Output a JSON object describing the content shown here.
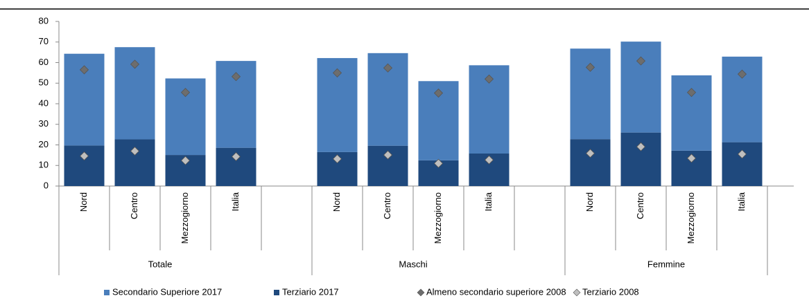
{
  "chart_data": {
    "type": "stacked-bar-with-markers",
    "groups": [
      {
        "name": "Totale",
        "categories": [
          "Nord",
          "Centro",
          "Mezzogiorno",
          "Italia"
        ]
      },
      {
        "name": "Maschi",
        "categories": [
          "Nord",
          "Centro",
          "Mezzogiorno",
          "Italia"
        ]
      },
      {
        "name": "Femmine",
        "categories": [
          "Nord",
          "Centro",
          "Mezzogiorno",
          "Italia"
        ]
      }
    ],
    "series": [
      {
        "name": "Secondario Superiore 2017",
        "kind": "bar",
        "color": "#4a7ebb",
        "values": [
          44.6,
          44.8,
          37.2,
          42.2,
          45.7,
          45.0,
          38.5,
          42.9,
          44.0,
          44.2,
          36.6,
          41.6
        ]
      },
      {
        "name": "Terziario 2017",
        "kind": "bar",
        "color": "#1f497d",
        "values": [
          19.7,
          22.7,
          15.1,
          18.6,
          16.5,
          19.6,
          12.5,
          15.8,
          22.8,
          26.0,
          17.2,
          21.3
        ]
      },
      {
        "name": "Almeno secondario superiore 2008",
        "kind": "marker",
        "color": "#6d6d6d",
        "values": [
          56.5,
          59.2,
          45.5,
          53.2,
          55.0,
          57.4,
          45.2,
          52.0,
          57.7,
          60.8,
          45.5,
          54.4
        ]
      },
      {
        "name": "Terziario 2008",
        "kind": "marker",
        "color": "#bfbfbf",
        "values": [
          14.6,
          17.0,
          12.4,
          14.3,
          13.2,
          15.1,
          11.0,
          12.7,
          15.9,
          19.1,
          13.5,
          15.5
        ]
      }
    ],
    "stack_order": [
      1,
      0
    ],
    "ylim": [
      0,
      80
    ],
    "yticks": [
      0,
      10,
      20,
      30,
      40,
      50,
      60,
      70,
      80
    ],
    "grid": false
  }
}
